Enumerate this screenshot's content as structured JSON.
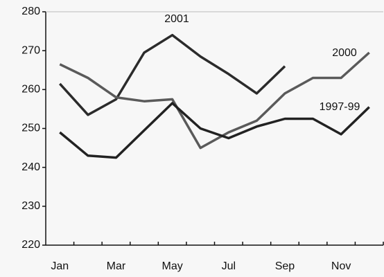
{
  "chart_data": {
    "type": "line",
    "categories": [
      "Jan",
      null,
      "Mar",
      null,
      "May",
      null,
      "Jul",
      null,
      "Sep",
      null,
      "Nov",
      null
    ],
    "series": [
      {
        "name": "2001",
        "color": "#2b2b2b",
        "values": [
          261.5,
          253.5,
          257.5,
          269.5,
          274,
          268.5,
          264,
          259,
          266,
          null,
          null,
          null
        ]
      },
      {
        "name": "2000",
        "color": "#5a5a5a",
        "values": [
          266.5,
          263,
          258,
          257,
          257.5,
          245,
          249,
          252,
          259,
          263,
          263,
          269.5
        ]
      },
      {
        "name": "1997-99",
        "color": "#222222",
        "values": [
          249,
          243,
          242.5,
          249.5,
          256.5,
          250,
          247.5,
          250.5,
          252.5,
          252.5,
          248.5,
          255.5
        ]
      }
    ],
    "ylim": [
      220,
      280
    ],
    "yticks": [
      220,
      230,
      240,
      250,
      260,
      270,
      280
    ],
    "grid": false
  }
}
